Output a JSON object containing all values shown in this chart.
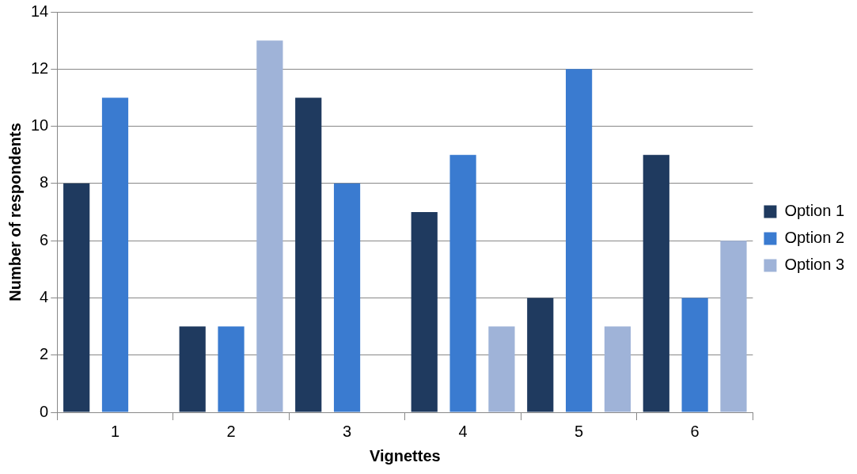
{
  "chart_data": {
    "type": "bar",
    "xlabel": "Vignettes",
    "ylabel": "Number of respondents",
    "categories": [
      "1",
      "2",
      "3",
      "4",
      "5",
      "6"
    ],
    "series": [
      {
        "name": "Option 1",
        "color": "#1f3a5f",
        "values": [
          8,
          3,
          11,
          7,
          4,
          9
        ]
      },
      {
        "name": "Option 2",
        "color": "#3a7bd0",
        "values": [
          11,
          3,
          8,
          9,
          12,
          4
        ]
      },
      {
        "name": "Option 3",
        "color": "#9fb3d8",
        "values": [
          0,
          13,
          0,
          3,
          3,
          6
        ]
      }
    ],
    "ylim": [
      0,
      14
    ],
    "yticks": [
      0,
      2,
      4,
      6,
      8,
      10,
      12,
      14
    ],
    "grid": "y",
    "legend": "right"
  }
}
